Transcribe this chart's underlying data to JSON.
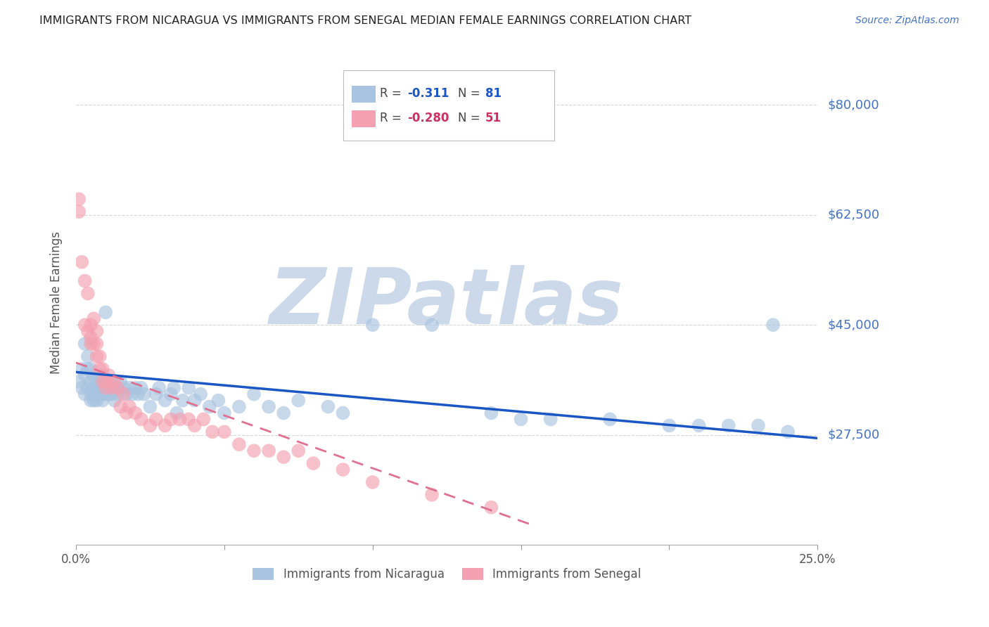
{
  "title": "IMMIGRANTS FROM NICARAGUA VS IMMIGRANTS FROM SENEGAL MEDIAN FEMALE EARNINGS CORRELATION CHART",
  "source": "Source: ZipAtlas.com",
  "ylabel": "Median Female Earnings",
  "ytick_labels": [
    "$27,500",
    "$45,000",
    "$62,500",
    "$80,000"
  ],
  "ytick_values": [
    27500,
    45000,
    62500,
    80000
  ],
  "ylim": [
    10000,
    87000
  ],
  "xlim": [
    0.0,
    0.25
  ],
  "background_color": "#ffffff",
  "grid_color": "#cccccc",
  "title_color": "#222222",
  "axis_label_color": "#555555",
  "ytick_color": "#4472c4",
  "watermark_text": "ZIPatlas",
  "watermark_color": "#ccd9ea",
  "nic_color": "#a8c4e0",
  "sen_color": "#f4a0b0",
  "nic_line_color": "#1a56c4",
  "sen_line_color": "#e07090",
  "nicaragua_x": [
    0.001,
    0.002,
    0.002,
    0.003,
    0.003,
    0.003,
    0.004,
    0.004,
    0.004,
    0.005,
    0.005,
    0.005,
    0.005,
    0.006,
    0.006,
    0.006,
    0.006,
    0.007,
    0.007,
    0.007,
    0.007,
    0.008,
    0.008,
    0.008,
    0.009,
    0.009,
    0.009,
    0.009,
    0.01,
    0.01,
    0.01,
    0.011,
    0.011,
    0.012,
    0.012,
    0.013,
    0.013,
    0.014,
    0.014,
    0.015,
    0.016,
    0.017,
    0.018,
    0.019,
    0.02,
    0.021,
    0.022,
    0.023,
    0.025,
    0.027,
    0.028,
    0.03,
    0.032,
    0.033,
    0.034,
    0.036,
    0.038,
    0.04,
    0.042,
    0.045,
    0.048,
    0.05,
    0.055,
    0.06,
    0.065,
    0.07,
    0.075,
    0.085,
    0.09,
    0.1,
    0.12,
    0.14,
    0.15,
    0.16,
    0.18,
    0.2,
    0.21,
    0.22,
    0.23,
    0.235,
    0.24
  ],
  "nicaragua_y": [
    36000,
    38000,
    35000,
    42000,
    37000,
    34000,
    40000,
    38000,
    35000,
    38000,
    36000,
    34000,
    33000,
    37000,
    35000,
    34000,
    33000,
    36000,
    35000,
    34000,
    33000,
    36000,
    35000,
    34000,
    37000,
    35000,
    34000,
    33000,
    47000,
    36000,
    34000,
    36000,
    34000,
    36000,
    34000,
    35000,
    33000,
    35000,
    34000,
    36000,
    35000,
    34000,
    35000,
    34000,
    35000,
    34000,
    35000,
    34000,
    32000,
    34000,
    35000,
    33000,
    34000,
    35000,
    31000,
    33000,
    35000,
    33000,
    34000,
    32000,
    33000,
    31000,
    32000,
    34000,
    32000,
    31000,
    33000,
    32000,
    31000,
    45000,
    45000,
    31000,
    30000,
    30000,
    30000,
    29000,
    29000,
    29000,
    29000,
    45000,
    28000
  ],
  "senegal_x": [
    0.001,
    0.001,
    0.002,
    0.003,
    0.003,
    0.004,
    0.004,
    0.005,
    0.005,
    0.005,
    0.006,
    0.006,
    0.007,
    0.007,
    0.007,
    0.008,
    0.008,
    0.009,
    0.009,
    0.01,
    0.01,
    0.011,
    0.012,
    0.013,
    0.014,
    0.015,
    0.016,
    0.017,
    0.018,
    0.02,
    0.022,
    0.025,
    0.027,
    0.03,
    0.032,
    0.035,
    0.038,
    0.04,
    0.043,
    0.046,
    0.05,
    0.055,
    0.06,
    0.065,
    0.07,
    0.075,
    0.08,
    0.09,
    0.1,
    0.12,
    0.14
  ],
  "senegal_y": [
    65000,
    63000,
    55000,
    52000,
    45000,
    50000,
    44000,
    45000,
    43000,
    42000,
    46000,
    42000,
    44000,
    42000,
    40000,
    40000,
    38000,
    38000,
    36000,
    36000,
    35000,
    37000,
    35000,
    36000,
    35000,
    32000,
    34000,
    31000,
    32000,
    31000,
    30000,
    29000,
    30000,
    29000,
    30000,
    30000,
    30000,
    29000,
    30000,
    28000,
    28000,
    26000,
    25000,
    25000,
    24000,
    25000,
    23000,
    22000,
    20000,
    18000,
    16000
  ],
  "nic_line_x": [
    0.0,
    0.25
  ],
  "nic_line_y": [
    37500,
    27000
  ],
  "sen_line_x": [
    0.0,
    0.155
  ],
  "sen_line_y": [
    39000,
    13000
  ]
}
